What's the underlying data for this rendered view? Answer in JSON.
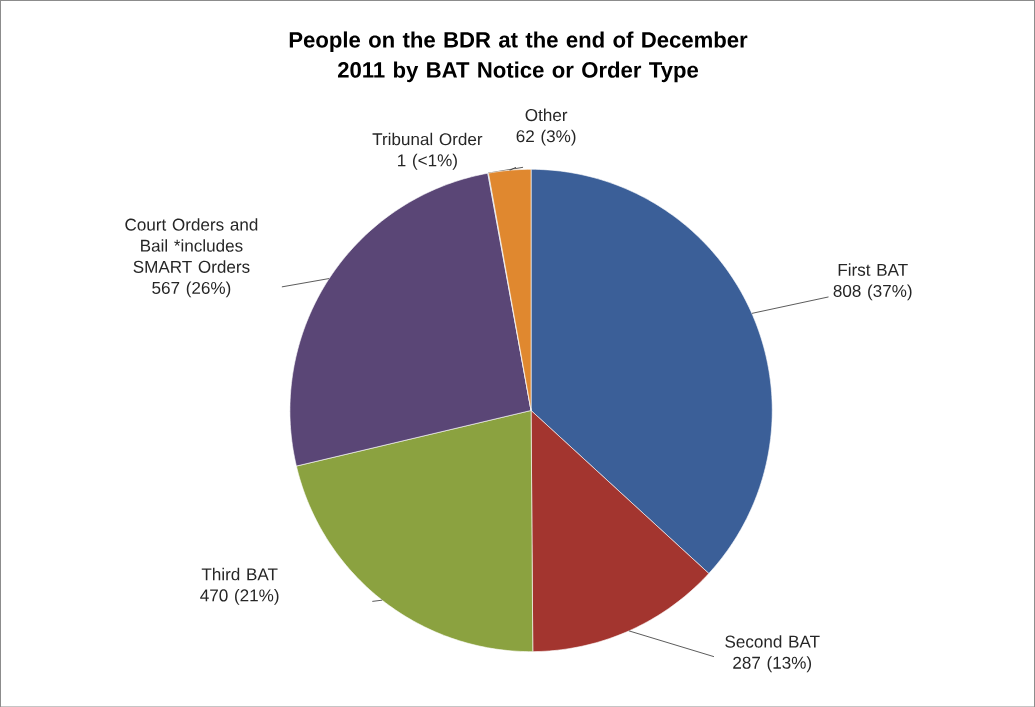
{
  "chart_data": {
    "type": "pie",
    "title": "People on the BDR at the end of December 2011 by BAT Notice or Order Type",
    "categories": [
      "First BAT",
      "Second BAT",
      "Third BAT",
      "Court Orders and Bail *includes SMART Orders",
      "Tribunal Order",
      "Other"
    ],
    "values": [
      808,
      287,
      470,
      567,
      1,
      62
    ],
    "value_labels": [
      "808 (37%)",
      "287 (13%)",
      "470 (21%)",
      "567 (26%)",
      "1 (<1%)",
      "62 (3%)"
    ],
    "colors": [
      "#3b5f98",
      "#a3352f",
      "#8ba240",
      "#5a4676",
      "#4a8fc0",
      "#e0882f"
    ]
  }
}
